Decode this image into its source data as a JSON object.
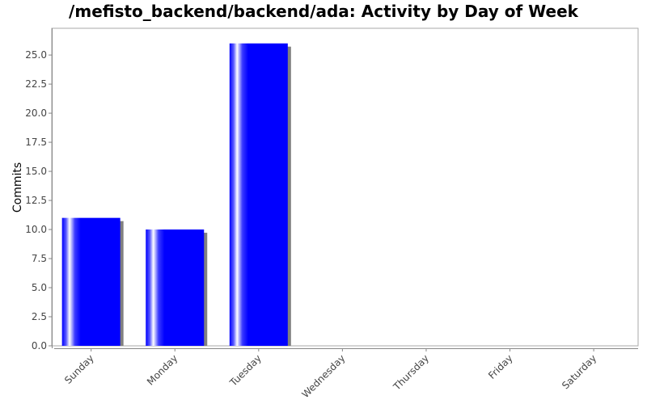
{
  "chart_data": {
    "type": "bar",
    "title": "/mefisto_backend/backend/ada: Activity by Day of Week",
    "xlabel": "",
    "ylabel": "Commits",
    "categories": [
      "Sunday",
      "Monday",
      "Tuesday",
      "Wednesday",
      "Thursday",
      "Friday",
      "Saturday"
    ],
    "values": [
      11,
      10,
      26,
      0,
      0,
      0,
      0
    ],
    "ylim": [
      0,
      27.3
    ],
    "yticks": [
      "0.0",
      "2.5",
      "5.0",
      "7.5",
      "10.0",
      "12.5",
      "15.0",
      "17.5",
      "20.0",
      "22.5",
      "25.0"
    ],
    "grid": false,
    "bar_color": "#0000ff",
    "shadow_color": "#808080"
  }
}
